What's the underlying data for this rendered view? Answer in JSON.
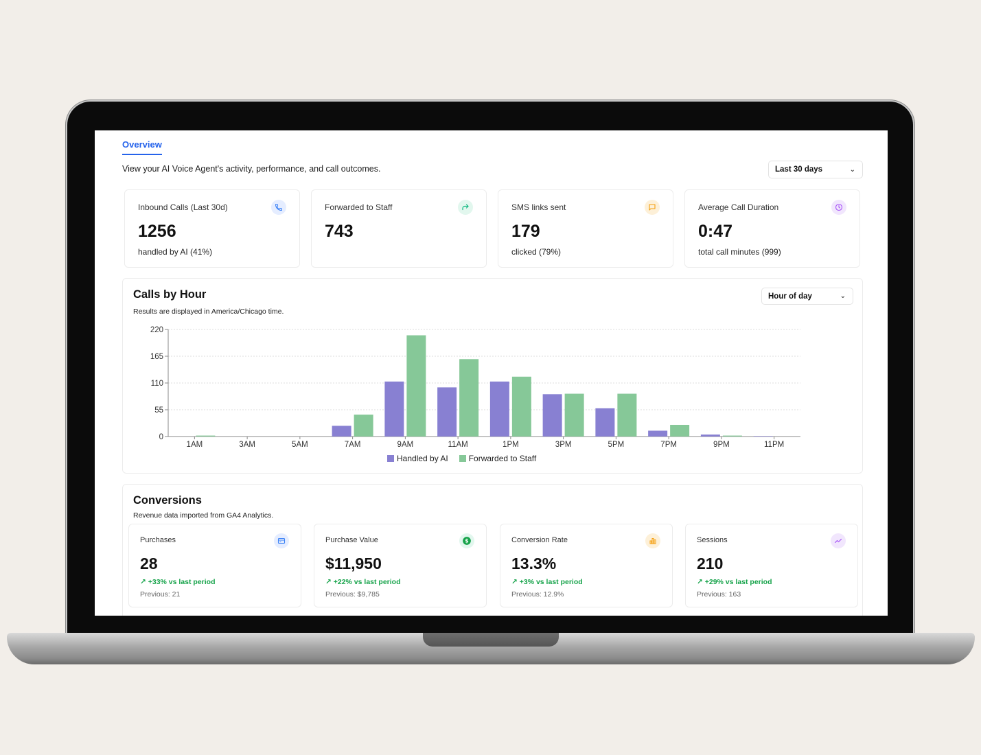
{
  "header": {
    "tab": "Overview",
    "subtitle": "View your AI Voice Agent's activity, performance, and call outcomes.",
    "range_select": "Last 30 days"
  },
  "stats": [
    {
      "label": "Inbound Calls (Last 30d)",
      "value": "1256",
      "sub": "handled by AI (41%)",
      "icon": "phone-icon",
      "color": "#3b82f6",
      "bg": "#e5edff"
    },
    {
      "label": "Forwarded to Staff",
      "value": "743",
      "sub": "",
      "icon": "forward-icon",
      "color": "#10b981",
      "bg": "#e2f7ee"
    },
    {
      "label": "SMS links sent",
      "value": "179",
      "sub": "clicked (79%)",
      "icon": "message-icon",
      "color": "#f59e0b",
      "bg": "#fdf0d8"
    },
    {
      "label": "Average Call Duration",
      "value": "0:47",
      "sub": "total call minutes (999)",
      "icon": "clock-icon",
      "color": "#a855f7",
      "bg": "#f1e6fd"
    }
  ],
  "calls_by_hour": {
    "title": "Calls by Hour",
    "description": "Results are displayed in America/Chicago time.",
    "select": "Hour of day"
  },
  "chart_data": {
    "type": "bar",
    "categories": [
      "1AM",
      "3AM",
      "5AM",
      "7AM",
      "9AM",
      "11AM",
      "1PM",
      "3PM",
      "5PM",
      "7PM",
      "9PM",
      "11PM"
    ],
    "series": [
      {
        "name": "Handled by AI",
        "color": "#8880d2",
        "values": [
          0,
          0,
          0,
          22,
          113,
          101,
          113,
          87,
          58,
          12,
          4,
          1
        ]
      },
      {
        "name": "Forwarded to Staff",
        "color": "#86c898",
        "values": [
          2,
          0,
          0,
          45,
          208,
          159,
          123,
          88,
          88,
          24,
          2,
          0
        ]
      }
    ],
    "yticks": [
      0,
      55,
      110,
      165,
      220
    ],
    "ylim": [
      0,
      220
    ],
    "grid": true,
    "legend": "bottom"
  },
  "conversions": {
    "title": "Conversions",
    "description": "Revenue data imported from GA4 Analytics.",
    "cards": [
      {
        "label": "Purchases",
        "value": "28",
        "trend": "+33% vs last period",
        "prev": "Previous: 21",
        "icon": "card-icon",
        "color": "#3b82f6",
        "bg": "#e5edff"
      },
      {
        "label": "Purchase Value",
        "value": "$11,950",
        "trend": "+22% vs last period",
        "prev": "Previous: $9,785",
        "icon": "dollar-icon",
        "color": "#16a34a",
        "bg": "#e2f7ee"
      },
      {
        "label": "Conversion Rate",
        "value": "13.3%",
        "trend": "+3% vs last period",
        "prev": "Previous: 12.9%",
        "icon": "bar-chart-icon",
        "color": "#f59e0b",
        "bg": "#fdf0d8"
      },
      {
        "label": "Sessions",
        "value": "210",
        "trend": "+29% vs last period",
        "prev": "Previous: 163",
        "icon": "trend-icon",
        "color": "#a855f7",
        "bg": "#f1e6fd"
      }
    ],
    "trend_arrow": "↗"
  }
}
